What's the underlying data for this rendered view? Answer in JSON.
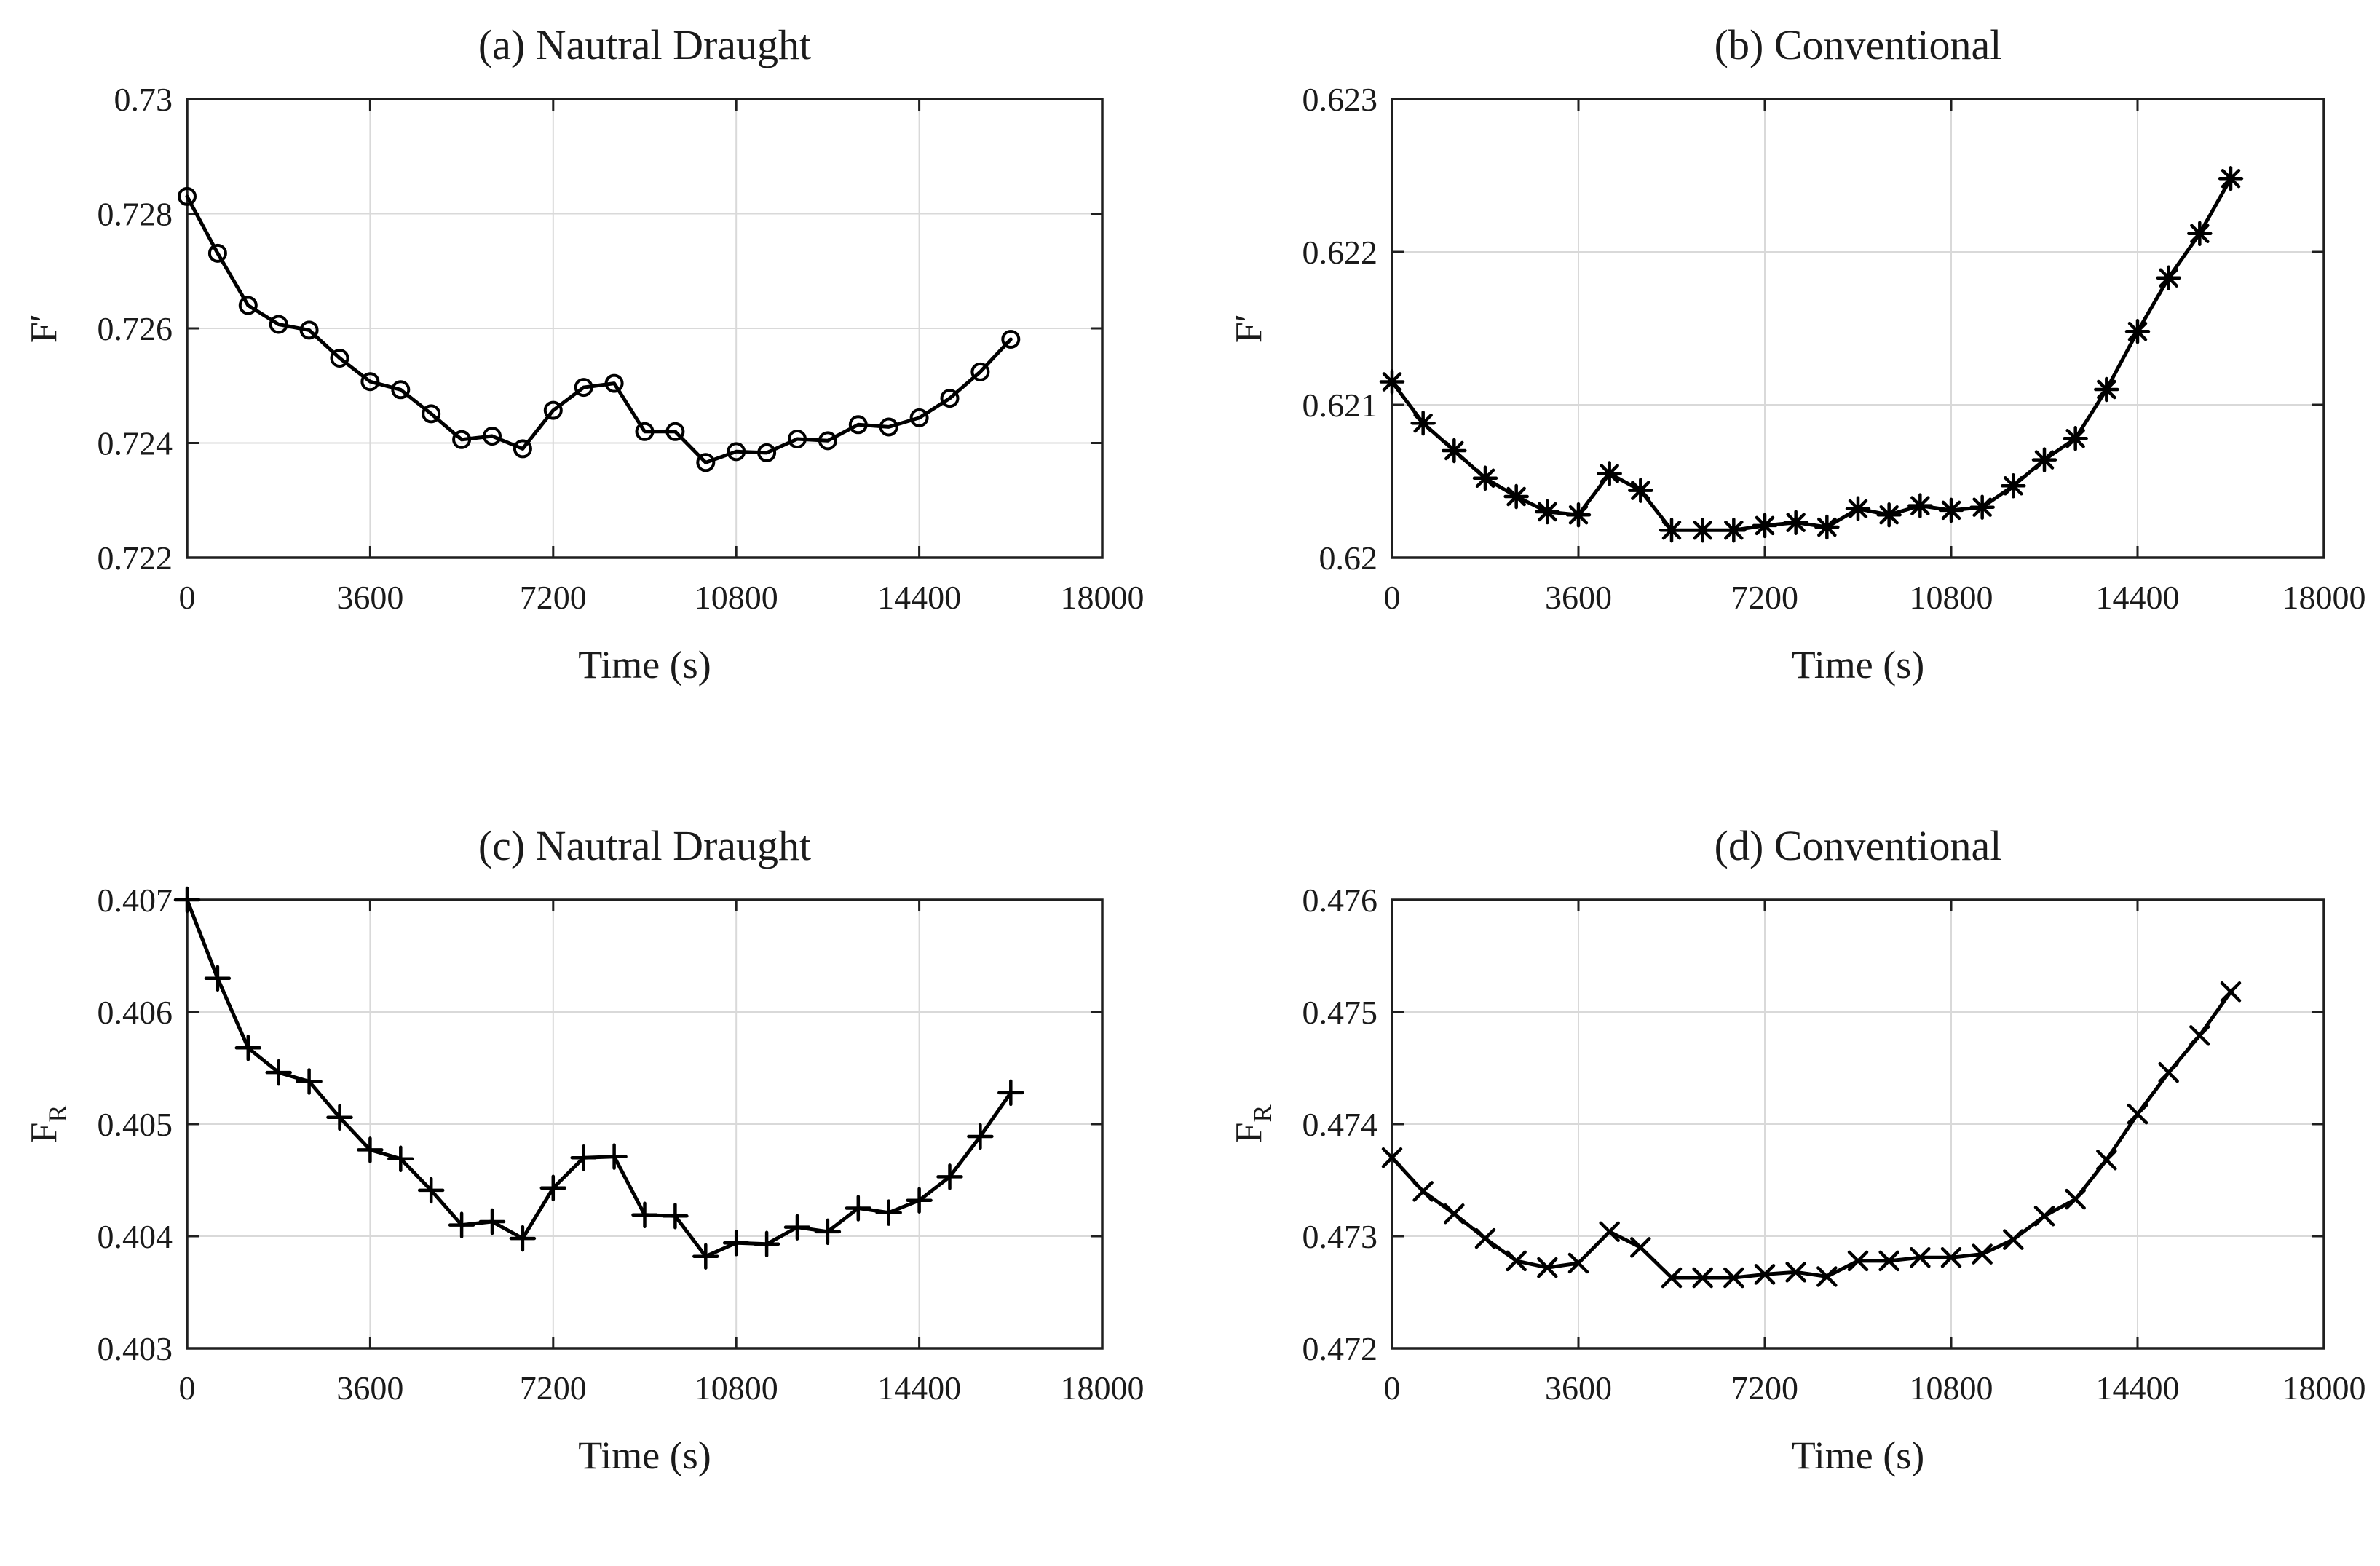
{
  "figure": {
    "background": "#ffffff",
    "line_color": "#000000",
    "grid_color": "#d9d9d9",
    "frame_color": "#1f1f1f",
    "text_color": "#1a1a1a"
  },
  "chart_data": [
    {
      "id": "a",
      "type": "line",
      "title": "(a) Nautral Draught",
      "xlabel": "Time (s)",
      "ylabel": "F′",
      "marker": "circle",
      "legend": "none",
      "grid": "on",
      "xlim": [
        0,
        18000
      ],
      "ylim": [
        0.722,
        0.73
      ],
      "xticks": [
        "0",
        "3600",
        "7200",
        "10800",
        "14400",
        "18000"
      ],
      "yticks": [
        "0.722",
        "0.724",
        "0.726",
        "0.728",
        "0.73"
      ],
      "x": [
        0,
        600,
        1200,
        1800,
        2400,
        3000,
        3600,
        4200,
        4800,
        5400,
        6000,
        6600,
        7200,
        7800,
        8400,
        9000,
        9600,
        10200,
        10800,
        11400,
        12000,
        12600,
        13200,
        13800,
        14400,
        15000,
        15600,
        16200
      ],
      "y": [
        0.7283,
        0.72731,
        0.7264,
        0.72607,
        0.72597,
        0.72548,
        0.72507,
        0.72493,
        0.72451,
        0.72406,
        0.72412,
        0.7239,
        0.72457,
        0.72497,
        0.72504,
        0.7242,
        0.7242,
        0.72366,
        0.72385,
        0.72383,
        0.72407,
        0.72404,
        0.72432,
        0.72428,
        0.72444,
        0.72478,
        0.72524,
        0.72581
      ]
    },
    {
      "id": "b",
      "type": "line",
      "title": "(b) Conventional",
      "xlabel": "Time (s)",
      "ylabel": "F′",
      "marker": "asterisk",
      "legend": "none",
      "grid": "on",
      "xlim": [
        0,
        18000
      ],
      "ylim": [
        0.62,
        0.623
      ],
      "xticks": [
        "0",
        "3600",
        "7200",
        "10800",
        "14400",
        "18000"
      ],
      "yticks": [
        "0.62",
        "0.621",
        "0.622",
        "0.623"
      ],
      "x": [
        0,
        600,
        1200,
        1800,
        2400,
        3000,
        3600,
        4200,
        4800,
        5400,
        6000,
        6600,
        7200,
        7800,
        8400,
        9000,
        9600,
        10200,
        10800,
        11400,
        12000,
        12600,
        13200,
        13800,
        14400,
        15000,
        15600,
        16200
      ],
      "y": [
        0.62115,
        0.62088,
        0.6207,
        0.62052,
        0.6204,
        0.6203,
        0.62028,
        0.62055,
        0.62044,
        0.62018,
        0.62018,
        0.62018,
        0.62021,
        0.62023,
        0.6202,
        0.62032,
        0.62028,
        0.62034,
        0.62031,
        0.62033,
        0.62047,
        0.62064,
        0.62078,
        0.6211,
        0.62148,
        0.62183,
        0.62212,
        0.62248
      ]
    },
    {
      "id": "c",
      "type": "line",
      "title": "(c) Nautral Draught",
      "xlabel": "Time (s)",
      "ylabel": "F_R",
      "marker": "plus",
      "legend": "none",
      "grid": "on",
      "xlim": [
        0,
        18000
      ],
      "ylim": [
        0.403,
        0.407
      ],
      "xticks": [
        "0",
        "3600",
        "7200",
        "10800",
        "14400",
        "18000"
      ],
      "yticks": [
        "0.403",
        "0.404",
        "0.405",
        "0.406",
        "0.407"
      ],
      "x": [
        0,
        600,
        1200,
        1800,
        2400,
        3000,
        3600,
        4200,
        4800,
        5400,
        6000,
        6600,
        7200,
        7800,
        8400,
        9000,
        9600,
        10200,
        10800,
        11400,
        12000,
        12600,
        13200,
        13800,
        14400,
        15000,
        15600,
        16200
      ],
      "y": [
        0.407,
        0.4063,
        0.40568,
        0.40546,
        0.40538,
        0.40506,
        0.40477,
        0.40469,
        0.40441,
        0.4041,
        0.40413,
        0.40398,
        0.40443,
        0.4047,
        0.40471,
        0.40419,
        0.40418,
        0.40382,
        0.40394,
        0.40393,
        0.40408,
        0.40404,
        0.40425,
        0.40421,
        0.40432,
        0.40453,
        0.40489,
        0.40528
      ]
    },
    {
      "id": "d",
      "type": "line",
      "title": "(d) Conventional",
      "xlabel": "Time (s)",
      "ylabel": "F_R",
      "marker": "x",
      "legend": "none",
      "grid": "on",
      "xlim": [
        0,
        18000
      ],
      "ylim": [
        0.472,
        0.476
      ],
      "xticks": [
        "0",
        "3600",
        "7200",
        "10800",
        "14400",
        "18000"
      ],
      "yticks": [
        "0.472",
        "0.473",
        "0.474",
        "0.475",
        "0.476"
      ],
      "x": [
        0,
        600,
        1200,
        1800,
        2400,
        3000,
        3600,
        4200,
        4800,
        5400,
        6000,
        6600,
        7200,
        7800,
        8400,
        9000,
        9600,
        10200,
        10800,
        11400,
        12000,
        12600,
        13200,
        13800,
        14400,
        15000,
        15600,
        16200
      ],
      "y": [
        0.4737,
        0.4734,
        0.4732,
        0.47298,
        0.47278,
        0.47272,
        0.47276,
        0.47304,
        0.4729,
        0.47263,
        0.47263,
        0.47263,
        0.47266,
        0.47268,
        0.47264,
        0.47278,
        0.47278,
        0.47281,
        0.47281,
        0.47284,
        0.47297,
        0.47318,
        0.47333,
        0.47368,
        0.47409,
        0.47446,
        0.47479,
        0.47518
      ]
    }
  ]
}
